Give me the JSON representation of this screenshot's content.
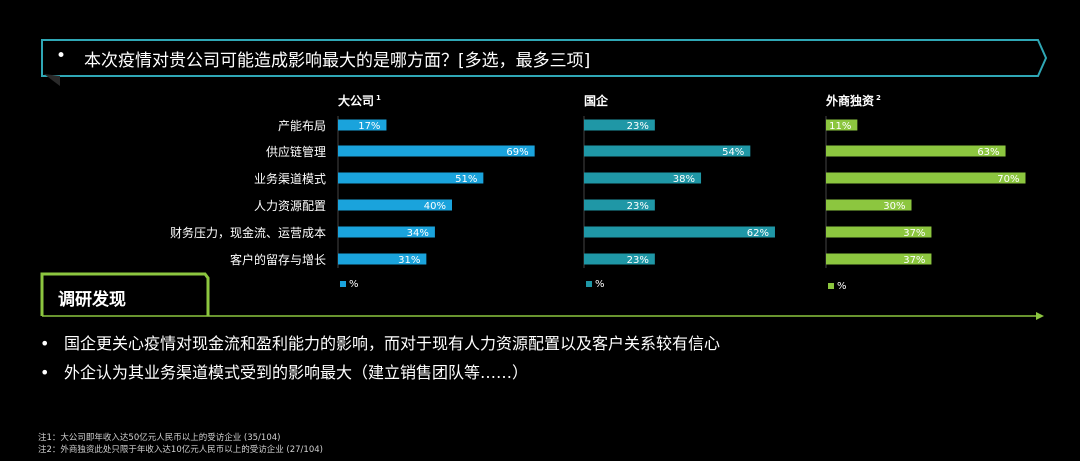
{
  "question": {
    "bullet": "•",
    "text": "本次疫情对贵公司可能造成影响最大的是哪方面？[多选，最多三项]"
  },
  "colors": {
    "blue": "#1aa3dc",
    "teal": "#1f97a6",
    "green": "#8cc63f",
    "frame": "#2fa7b5"
  },
  "chart_data": {
    "type": "bar",
    "orientation": "horizontal",
    "categories": [
      "产能布局",
      "供应链管理",
      "业务渠道模式",
      "人力资源配置",
      "财务压力，现金流、运营成本",
      "客户的留存与增长"
    ],
    "unit_label": "%",
    "series": [
      {
        "name": "大公司",
        "footnote_mark": "1",
        "values": [
          17,
          69,
          51,
          40,
          34,
          31
        ],
        "labels": [
          "17%",
          "69%",
          "51%",
          "40%",
          "34%",
          "31%"
        ],
        "color": "#1aa3dc"
      },
      {
        "name": "国企",
        "footnote_mark": "",
        "values": [
          23,
          54,
          38,
          23,
          62,
          23
        ],
        "labels": [
          "23%",
          "54%",
          "38%",
          "23%",
          "62%",
          "23%"
        ],
        "color": "#1f97a6"
      },
      {
        "name": "外商独资",
        "footnote_mark": "2",
        "values": [
          11,
          63,
          70,
          30,
          37,
          37
        ],
        "labels": [
          "11%",
          "63%",
          "70%",
          "30%",
          "37%",
          "37%"
        ],
        "color": "#8cc63f"
      }
    ]
  },
  "findings": {
    "title": "调研发现",
    "items": [
      {
        "bullet": "•",
        "text": "国企更关心疫情对现金流和盈利能力的影响，而对于现有人力资源配置以及客户关系较有信心"
      },
      {
        "bullet": "•",
        "text": "外企认为其业务渠道模式受到的影响最大（建立销售团队等……）"
      }
    ]
  },
  "notes": [
    "注1：大公司即年收入达50亿元人民币以上的受访企业 (35/104)",
    "注2：外商独资此处只限于年收入达10亿元人民币以上的受访企业 (27/104)"
  ]
}
